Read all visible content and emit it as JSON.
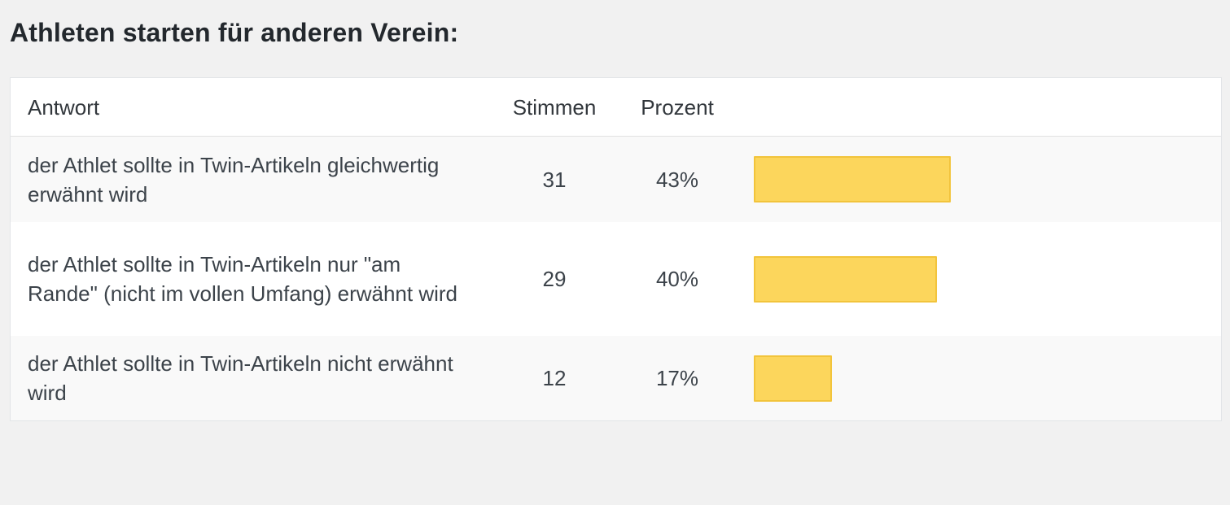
{
  "poll": {
    "title": "Athleten starten für anderen Verein:"
  },
  "table": {
    "headers": {
      "answer": "Antwort",
      "votes": "Stimmen",
      "percent": "Prozent"
    },
    "rows": [
      {
        "answer": "der Athlet sollte in Twin-Artikeln gleichwertig erwähnt wird",
        "votes": "31",
        "percent": "43%",
        "share": 0.43
      },
      {
        "answer": "der Athlet sollte in Twin-Artikeln nur \"am Rande\" (nicht im vollen Umfang) erwähnt wird",
        "votes": "29",
        "percent": "40%",
        "share": 0.4
      },
      {
        "answer": "der Athlet sollte in Twin-Artikeln nicht erwähnt wird",
        "votes": "12",
        "percent": "17%",
        "share": 0.17
      }
    ]
  },
  "colors": {
    "bar_fill": "#fcd65c",
    "bar_border": "#f2c43c",
    "page_background": "#f1f1f1"
  }
}
